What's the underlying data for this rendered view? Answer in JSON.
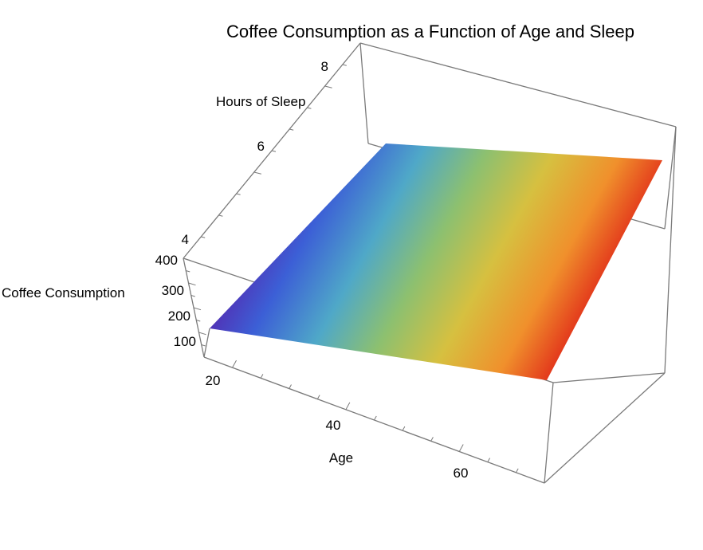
{
  "chart_data": {
    "type": "surface3d",
    "title": "Coffee Consumption as a Function of Age and Sleep",
    "x_axis": {
      "label": "Age",
      "range": [
        15,
        75
      ],
      "ticks": [
        20,
        40,
        60
      ],
      "tick_labels": [
        "20",
        "40",
        "60"
      ]
    },
    "y_axis": {
      "label": "Hours of Sleep",
      "range": [
        4,
        9
      ],
      "ticks": [
        4,
        6,
        8
      ],
      "tick_labels": [
        "4",
        "6",
        "8"
      ]
    },
    "z_axis": {
      "label": "Coffee Consumption",
      "range": [
        0,
        400
      ],
      "ticks": [
        100,
        200,
        300,
        400
      ],
      "tick_labels": [
        "100",
        "200",
        "300",
        "400"
      ]
    },
    "surface": {
      "corners": [
        {
          "age": 15,
          "sleep": 4,
          "coffee": 160
        },
        {
          "age": 75,
          "sleep": 4,
          "coffee": 20
        },
        {
          "age": 75,
          "sleep": 9,
          "coffee": 220
        },
        {
          "age": 15,
          "sleep": 9,
          "coffee": 300
        }
      ],
      "colormap": [
        "#5a1fa8",
        "#3c5fd6",
        "#4fa8c8",
        "#8cc070",
        "#d6c040",
        "#f0902c",
        "#e02418"
      ]
    },
    "grid": false,
    "box": true
  }
}
